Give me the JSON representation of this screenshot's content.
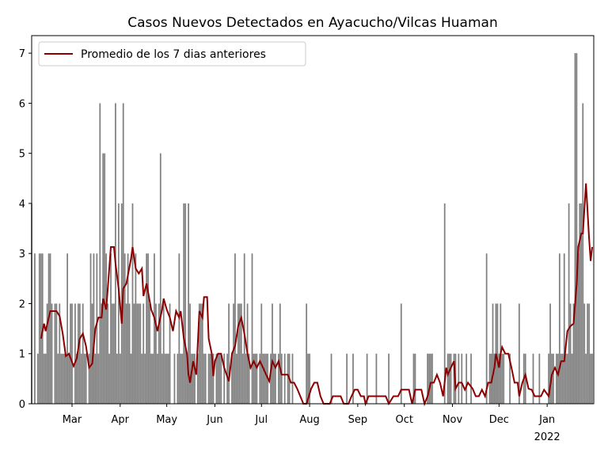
{
  "chart_data": {
    "type": "bar",
    "title": "Casos Nuevos Detectados en Ayacucho/Vilcas Huaman",
    "x": [
      33,
      34,
      35,
      36,
      37,
      38,
      39,
      40,
      41,
      42,
      43,
      44,
      45,
      46,
      47,
      48,
      49,
      50,
      51,
      52,
      53,
      54,
      55,
      56,
      57,
      58,
      59,
      60,
      61,
      62,
      63,
      64,
      65,
      66,
      67,
      68,
      69,
      70,
      71,
      72,
      73,
      74,
      75,
      76,
      77,
      78,
      79,
      80,
      81,
      82,
      83,
      84,
      85,
      86,
      87,
      88,
      89,
      90,
      91,
      92,
      93,
      94,
      95,
      96,
      97,
      98,
      99,
      100,
      101,
      102,
      103,
      104,
      105,
      106,
      107,
      108,
      109,
      110,
      111,
      112,
      113,
      114,
      115,
      116,
      117,
      118,
      119,
      120,
      121,
      122,
      123,
      124,
      125,
      126,
      127,
      128,
      129,
      130,
      131,
      132,
      133,
      134,
      135,
      136,
      137,
      138,
      139,
      140,
      141,
      142,
      143,
      144,
      145,
      146,
      147,
      148,
      149,
      150,
      151,
      152,
      153,
      154,
      155,
      156,
      157,
      158,
      159,
      160,
      161,
      162,
      163,
      164,
      165,
      166,
      167,
      168,
      169,
      170,
      171,
      172,
      173,
      174,
      175,
      176,
      177,
      178,
      179,
      180,
      181,
      182,
      183,
      184,
      185,
      186,
      187,
      188,
      189,
      190,
      191,
      192,
      193,
      194,
      195,
      196,
      197,
      198,
      199,
      200,
      201,
      202,
      203,
      204,
      205,
      206,
      207,
      208,
      209,
      210,
      211,
      212,
      213,
      214,
      215,
      216,
      217,
      218,
      219,
      220,
      221,
      222,
      223,
      224,
      225,
      226,
      227,
      228,
      229,
      230,
      231,
      232,
      233,
      234,
      235,
      236,
      237,
      238,
      239,
      240,
      241,
      242,
      243,
      244,
      245,
      246,
      247,
      248,
      249,
      250,
      251,
      252,
      253,
      254,
      255,
      256,
      257,
      258,
      259,
      260,
      261,
      262,
      263,
      264,
      265,
      266,
      267,
      268,
      269,
      270,
      271,
      272,
      273,
      274,
      275,
      276,
      277,
      278,
      279,
      280,
      281,
      282,
      283,
      284,
      285,
      286,
      287,
      288,
      289,
      290,
      291,
      292,
      293,
      294,
      295,
      296,
      297,
      298,
      299,
      300,
      301,
      302,
      303,
      304,
      305,
      306,
      307,
      308,
      309,
      310,
      311,
      312,
      313,
      314,
      315,
      316,
      317,
      318,
      319,
      320,
      321,
      322,
      323,
      324,
      325,
      326,
      327,
      328,
      329,
      330,
      331,
      332,
      333,
      334,
      335,
      336,
      337,
      338,
      339,
      340,
      341,
      342,
      343,
      344,
      345,
      346,
      347,
      348,
      349,
      350,
      351,
      352,
      353,
      354,
      355,
      356,
      357,
      358,
      359,
      360,
      361,
      362,
      363,
      364,
      365,
      366,
      367,
      368,
      369,
      370,
      371,
      372,
      373,
      374,
      375,
      376,
      377,
      378,
      379,
      380,
      381,
      382,
      383,
      384,
      385,
      386,
      387,
      388,
      389,
      390,
      391,
      392,
      393,
      394
    ],
    "series": [
      {
        "type": "bar",
        "color": "#808080",
        "values": [
          4,
          0,
          3,
          0,
          1,
          3,
          3,
          3,
          1,
          1,
          2,
          3,
          3,
          2,
          0,
          2,
          2,
          1,
          2,
          1,
          1,
          1,
          1,
          3,
          1,
          2,
          2,
          0,
          2,
          1,
          2,
          2,
          1,
          2,
          1,
          1,
          0,
          1,
          3,
          2,
          3,
          1,
          3,
          1,
          6,
          2,
          5,
          5,
          3,
          2,
          1,
          3,
          2,
          2,
          6,
          1,
          4,
          1,
          4,
          6,
          3,
          2,
          3,
          2,
          1,
          4,
          2,
          3,
          2,
          2,
          2,
          1,
          2,
          1,
          3,
          3,
          2,
          1,
          1,
          3,
          2,
          1,
          2,
          5,
          1,
          2,
          1,
          1,
          1,
          2,
          0,
          0,
          1,
          0,
          1,
          3,
          1,
          1,
          4,
          4,
          1,
          4,
          2,
          1,
          1,
          1,
          0,
          1,
          2,
          2,
          2,
          1,
          1,
          0,
          1,
          1,
          1,
          1,
          0,
          1,
          1,
          1,
          1,
          0,
          1,
          0,
          1,
          2,
          0,
          1,
          2,
          3,
          1,
          2,
          2,
          2,
          1,
          3,
          1,
          2,
          1,
          0,
          3,
          1,
          1,
          1,
          0,
          1,
          2,
          1,
          1,
          1,
          1,
          0,
          1,
          2,
          1,
          1,
          0,
          1,
          2,
          1,
          0,
          1,
          0,
          1,
          1,
          0,
          1,
          0,
          0,
          0,
          0,
          0,
          0,
          0,
          0,
          2,
          1,
          1,
          0,
          0,
          0,
          0,
          0,
          0,
          0,
          0,
          0,
          0,
          0,
          0,
          0,
          1,
          0,
          0,
          0,
          0,
          0,
          0,
          0,
          0,
          0,
          1,
          0,
          0,
          0,
          1,
          0,
          0,
          0,
          0,
          0,
          0,
          0,
          0,
          1,
          0,
          0,
          0,
          0,
          0,
          1,
          0,
          0,
          0,
          0,
          0,
          0,
          0,
          1,
          0,
          0,
          0,
          0,
          0,
          0,
          0,
          2,
          0,
          0,
          0,
          0,
          0,
          0,
          0,
          1,
          1,
          0,
          0,
          0,
          0,
          0,
          0,
          0,
          1,
          1,
          1,
          1,
          0,
          0,
          0,
          0,
          0,
          0,
          0,
          4,
          0,
          1,
          1,
          1,
          0,
          1,
          1,
          0,
          1,
          0,
          1,
          0,
          0,
          1,
          0,
          0,
          1,
          0,
          0,
          0,
          0,
          0,
          0,
          0,
          0,
          0,
          3,
          0,
          1,
          1,
          2,
          1,
          2,
          2,
          1,
          2,
          1,
          1,
          0,
          0,
          0,
          1,
          0,
          0,
          0,
          0,
          0,
          2,
          0,
          0,
          1,
          1,
          0,
          0,
          0,
          0,
          1,
          0,
          0,
          0,
          1,
          0,
          0,
          0,
          0,
          0,
          1,
          2,
          1,
          1,
          0,
          1,
          1,
          3,
          1,
          1,
          3,
          1,
          1,
          4,
          2,
          1,
          2,
          7,
          7,
          3,
          4,
          4,
          6,
          2,
          1,
          2,
          2,
          1,
          1
        ]
      },
      {
        "type": "line",
        "name": "Promedio de los 7 dias anteriores",
        "color": "#8b0000",
        "x": [
          39,
          41,
          42,
          45,
          49,
          51,
          53,
          55,
          57,
          60,
          62,
          64,
          66,
          68,
          70,
          72,
          74,
          76,
          78,
          79,
          81,
          84,
          86,
          87,
          89,
          91,
          92,
          94,
          97,
          98,
          100,
          102,
          104,
          105,
          107,
          110,
          112,
          114,
          117,
          118,
          120,
          122,
          124,
          126,
          128,
          129,
          131,
          133,
          134,
          135,
          137,
          139,
          141,
          143,
          144,
          146,
          147,
          149,
          150,
          151,
          153,
          155,
          157,
          160,
          162,
          164,
          166,
          168,
          170,
          172,
          174,
          176,
          178,
          180,
          182,
          184,
          186,
          188,
          190,
          192,
          194,
          196,
          198,
          200,
          202,
          204,
          206,
          208,
          210,
          213,
          215,
          217,
          219,
          221,
          225,
          227,
          232,
          234,
          237,
          239,
          241,
          243,
          245,
          247,
          248,
          250,
          261,
          263,
          266,
          269,
          271,
          276,
          278,
          280,
          284,
          286,
          288,
          290,
          292,
          294,
          296,
          298,
          300,
          301,
          303,
          305,
          306,
          308,
          310,
          312,
          314,
          317,
          319,
          321,
          323,
          325,
          327,
          329,
          331,
          332,
          334,
          335,
          336,
          338,
          340,
          342,
          344,
          346,
          347,
          349,
          351,
          353,
          355,
          357,
          361,
          363,
          366,
          368,
          370,
          372,
          374,
          376,
          378,
          380,
          382,
          384,
          385,
          387,
          388,
          390,
          392,
          393,
          394
        ],
        "values": [
          1.3,
          1.6,
          1.45,
          1.85,
          1.85,
          1.75,
          1.4,
          0.95,
          1.0,
          0.75,
          0.9,
          1.3,
          1.4,
          1.15,
          0.72,
          0.8,
          1.5,
          1.72,
          1.72,
          2.1,
          1.88,
          3.13,
          3.13,
          2.8,
          2.3,
          1.6,
          2.3,
          2.4,
          2.9,
          3.13,
          2.7,
          2.6,
          2.7,
          2.15,
          2.4,
          1.88,
          1.72,
          1.45,
          1.88,
          2.1,
          1.88,
          1.72,
          1.45,
          1.85,
          1.72,
          1.85,
          1.3,
          1.0,
          0.58,
          0.42,
          0.85,
          0.58,
          1.85,
          1.72,
          2.13,
          2.13,
          1.3,
          1.0,
          0.55,
          0.85,
          1.0,
          1.0,
          0.72,
          0.45,
          1.0,
          1.15,
          1.55,
          1.72,
          1.4,
          1.0,
          0.72,
          0.85,
          0.72,
          0.85,
          0.72,
          0.58,
          0.45,
          0.85,
          0.72,
          0.85,
          0.58,
          0.58,
          0.58,
          0.42,
          0.42,
          0.3,
          0.15,
          0,
          0,
          0.3,
          0.42,
          0.42,
          0.15,
          0,
          0,
          0.15,
          0.15,
          0,
          0,
          0.15,
          0.28,
          0.28,
          0.15,
          0.15,
          0,
          0.15,
          0.15,
          0,
          0.15,
          0.15,
          0.28,
          0.28,
          0,
          0.28,
          0.28,
          0,
          0.15,
          0.42,
          0.42,
          0.58,
          0.42,
          0.15,
          0.72,
          0.58,
          0.72,
          0.85,
          0.3,
          0.42,
          0.42,
          0.28,
          0.42,
          0.3,
          0.15,
          0.15,
          0.28,
          0.15,
          0.42,
          0.42,
          0.72,
          1.0,
          0.72,
          1.0,
          1.13,
          1.0,
          1.0,
          0.72,
          0.42,
          0.42,
          0.15,
          0.42,
          0.58,
          0.3,
          0.28,
          0.15,
          0.15,
          0.28,
          0.15,
          0.58,
          0.72,
          0.58,
          0.85,
          0.85,
          1.45,
          1.55,
          1.6,
          2.4,
          3.13,
          3.4,
          3.4,
          4.4,
          3.3,
          2.85,
          3.13
        ]
      }
    ],
    "xlim": [
      33,
      395
    ],
    "xticks": [
      {
        "value": 59,
        "label": "Mar"
      },
      {
        "value": 90,
        "label": "Apr"
      },
      {
        "value": 120,
        "label": "May"
      },
      {
        "value": 151,
        "label": "Jun"
      },
      {
        "value": 181,
        "label": "Jul"
      },
      {
        "value": 212,
        "label": "Aug"
      },
      {
        "value": 243,
        "label": "Sep"
      },
      {
        "value": 273,
        "label": "Oct"
      },
      {
        "value": 304,
        "label": "Nov"
      },
      {
        "value": 334,
        "label": "Dec"
      },
      {
        "value": 365,
        "label": "Jan\n2022"
      }
    ],
    "ylim": [
      0,
      7.35
    ],
    "yticks": [
      0,
      1,
      2,
      3,
      4,
      5,
      6,
      7
    ],
    "legend": "upper left"
  }
}
